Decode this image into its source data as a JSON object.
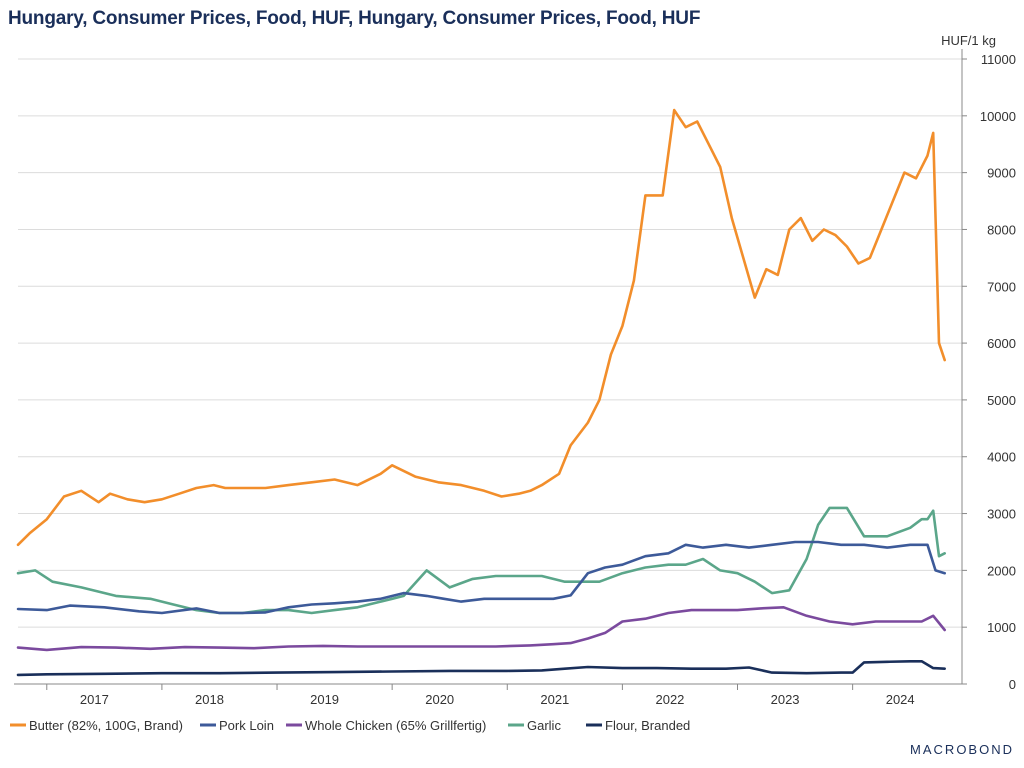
{
  "title": "Hungary, Consumer Prices, Food, HUF, Hungary, Consumer Prices, Food, HUF",
  "brand": "MACROBOND",
  "chart_data": {
    "type": "line",
    "unit_label": "HUF/1 kg",
    "ylim": [
      0,
      11000
    ],
    "y_ticks": [
      0,
      1000,
      2000,
      3000,
      4000,
      5000,
      6000,
      7000,
      8000,
      9000,
      10000,
      11000
    ],
    "xlim": [
      2016.75,
      2024.95
    ],
    "x_tick_labels": [
      "2017",
      "2018",
      "2019",
      "2020",
      "2021",
      "2022",
      "2023",
      "2024"
    ],
    "grid": "horizontal",
    "legend_position": "bottom",
    "colors": {
      "Butter (82%, 100G, Brand)": "#f28e2b",
      "Pork Loin": "#3d5a99",
      "Whole Chicken (65% Grillfertig)": "#7b4a9e",
      "Garlic": "#5ba68a",
      "Flour, Branded": "#1a2f5a"
    },
    "series": [
      {
        "name": "Butter (82%, 100G, Brand)",
        "x": [
          2016.75,
          2016.85,
          2017.0,
          2017.15,
          2017.3,
          2017.45,
          2017.55,
          2017.7,
          2017.85,
          2018.0,
          2018.15,
          2018.3,
          2018.45,
          2018.55,
          2018.7,
          2018.9,
          2019.1,
          2019.3,
          2019.5,
          2019.7,
          2019.9,
          2020.0,
          2020.2,
          2020.4,
          2020.6,
          2020.8,
          2020.95,
          2021.1,
          2021.2,
          2021.3,
          2021.45,
          2021.55,
          2021.7,
          2021.8,
          2021.9,
          2022.0,
          2022.1,
          2022.2,
          2022.35,
          2022.45,
          2022.55,
          2022.65,
          2022.75,
          2022.85,
          2022.95,
          2023.05,
          2023.15,
          2023.25,
          2023.35,
          2023.45,
          2023.55,
          2023.65,
          2023.75,
          2023.85,
          2023.95,
          2024.05,
          2024.15,
          2024.25,
          2024.35,
          2024.45,
          2024.55,
          2024.65,
          2024.7,
          2024.75,
          2024.8
        ],
        "values": [
          2450,
          2650,
          2900,
          3300,
          3400,
          3200,
          3350,
          3250,
          3200,
          3250,
          3350,
          3450,
          3500,
          3450,
          3450,
          3450,
          3500,
          3550,
          3600,
          3500,
          3700,
          3850,
          3650,
          3550,
          3500,
          3400,
          3300,
          3350,
          3400,
          3500,
          3700,
          4200,
          4600,
          5000,
          5800,
          6300,
          7100,
          8600,
          8600,
          10100,
          9800,
          9900,
          9500,
          9100,
          8200,
          7500,
          6800,
          7300,
          7200,
          8000,
          8200,
          7800,
          8000,
          7900,
          7700,
          7400,
          7500,
          8000,
          8500,
          9000,
          8900,
          9300,
          9700,
          6000,
          5700
        ]
      },
      {
        "name": "Pork Loin",
        "x": [
          2016.75,
          2017.0,
          2017.2,
          2017.5,
          2017.8,
          2018.0,
          2018.3,
          2018.5,
          2018.7,
          2018.9,
          2019.1,
          2019.3,
          2019.5,
          2019.7,
          2019.9,
          2020.1,
          2020.3,
          2020.45,
          2020.6,
          2020.8,
          2021.0,
          2021.2,
          2021.4,
          2021.55,
          2021.7,
          2021.85,
          2022.0,
          2022.2,
          2022.4,
          2022.55,
          2022.7,
          2022.9,
          2023.1,
          2023.3,
          2023.5,
          2023.7,
          2023.9,
          2024.1,
          2024.3,
          2024.5,
          2024.65,
          2024.72,
          2024.8
        ],
        "values": [
          1320,
          1300,
          1380,
          1350,
          1280,
          1250,
          1330,
          1250,
          1250,
          1260,
          1350,
          1400,
          1420,
          1450,
          1500,
          1600,
          1550,
          1500,
          1450,
          1500,
          1500,
          1500,
          1500,
          1560,
          1950,
          2050,
          2100,
          2250,
          2300,
          2450,
          2400,
          2450,
          2400,
          2450,
          2500,
          2500,
          2450,
          2450,
          2400,
          2450,
          2450,
          2000,
          1950
        ]
      },
      {
        "name": "Whole Chicken (65% Grillfertig)",
        "x": [
          2016.75,
          2017.0,
          2017.3,
          2017.6,
          2017.9,
          2018.2,
          2018.5,
          2018.8,
          2019.1,
          2019.4,
          2019.7,
          2020.0,
          2020.3,
          2020.6,
          2020.9,
          2021.2,
          2021.4,
          2021.55,
          2021.7,
          2021.85,
          2022.0,
          2022.2,
          2022.4,
          2022.6,
          2022.8,
          2023.0,
          2023.2,
          2023.4,
          2023.6,
          2023.8,
          2024.0,
          2024.2,
          2024.4,
          2024.6,
          2024.7,
          2024.8
        ],
        "values": [
          640,
          600,
          650,
          640,
          620,
          650,
          640,
          630,
          660,
          670,
          660,
          660,
          660,
          660,
          660,
          680,
          700,
          720,
          800,
          900,
          1100,
          1150,
          1250,
          1300,
          1300,
          1300,
          1330,
          1350,
          1200,
          1100,
          1050,
          1100,
          1100,
          1100,
          1200,
          950
        ]
      },
      {
        "name": "Garlic",
        "x": [
          2016.75,
          2016.9,
          2017.05,
          2017.3,
          2017.6,
          2017.9,
          2018.1,
          2018.3,
          2018.5,
          2018.7,
          2018.9,
          2019.1,
          2019.3,
          2019.5,
          2019.7,
          2019.9,
          2020.0,
          2020.1,
          2020.3,
          2020.5,
          2020.7,
          2020.9,
          2021.1,
          2021.3,
          2021.5,
          2021.7,
          2021.8,
          2022.0,
          2022.2,
          2022.4,
          2022.55,
          2022.7,
          2022.85,
          2023.0,
          2023.15,
          2023.3,
          2023.45,
          2023.6,
          2023.7,
          2023.8,
          2023.95,
          2024.1,
          2024.3,
          2024.5,
          2024.6,
          2024.65,
          2024.7,
          2024.75,
          2024.8
        ],
        "values": [
          1950,
          2000,
          1800,
          1700,
          1550,
          1500,
          1400,
          1300,
          1250,
          1250,
          1300,
          1300,
          1250,
          1300,
          1350,
          1450,
          1500,
          1550,
          2000,
          1700,
          1850,
          1900,
          1900,
          1900,
          1800,
          1800,
          1800,
          1950,
          2050,
          2100,
          2100,
          2200,
          2000,
          1950,
          1800,
          1600,
          1650,
          2200,
          2800,
          3100,
          3100,
          2600,
          2600,
          2750,
          2900,
          2900,
          3050,
          2250,
          2300
        ]
      },
      {
        "name": "Flour, Branded",
        "x": [
          2016.75,
          2017.0,
          2017.5,
          2018.0,
          2018.5,
          2019.0,
          2019.5,
          2020.0,
          2020.5,
          2021.0,
          2021.3,
          2021.5,
          2021.7,
          2022.0,
          2022.3,
          2022.6,
          2022.9,
          2023.1,
          2023.3,
          2023.6,
          2023.9,
          2024.0,
          2024.1,
          2024.3,
          2024.5,
          2024.6,
          2024.7,
          2024.8
        ],
        "values": [
          160,
          170,
          180,
          190,
          190,
          200,
          210,
          220,
          230,
          230,
          240,
          270,
          300,
          280,
          280,
          270,
          270,
          290,
          200,
          190,
          200,
          200,
          380,
          390,
          400,
          400,
          280,
          270
        ]
      }
    ]
  }
}
